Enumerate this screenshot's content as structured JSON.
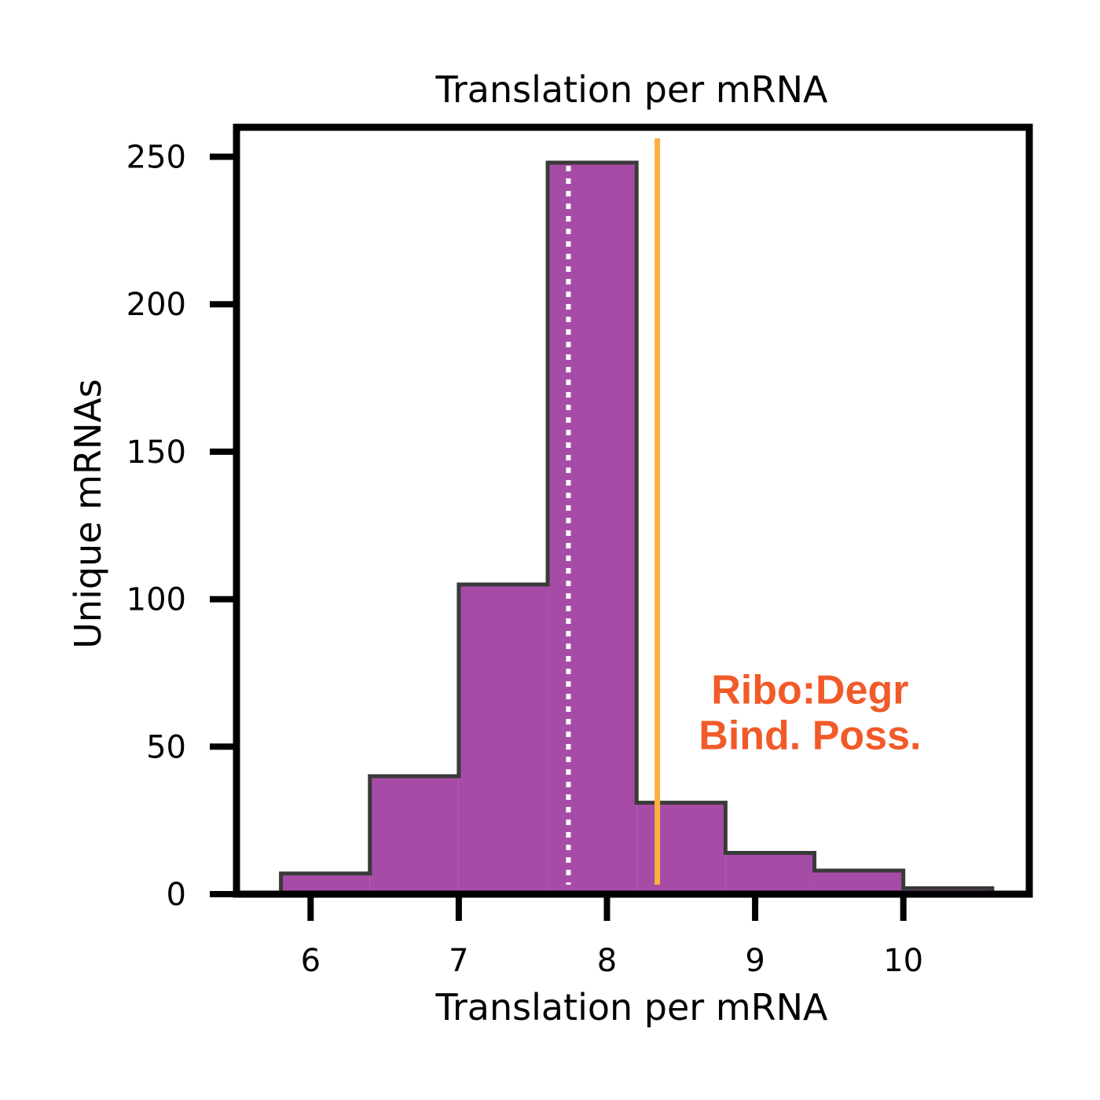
{
  "chart_data": {
    "type": "bar",
    "title": "Translation per mRNA",
    "xlabel": "Translation per mRNA",
    "ylabel": "Unique mRNAs",
    "xlim": [
      5.5,
      10.85
    ],
    "ylim": [
      0,
      260
    ],
    "xticks": [
      6,
      7,
      8,
      9,
      10
    ],
    "yticks": [
      0,
      50,
      100,
      150,
      200,
      250
    ],
    "bins": [
      {
        "x0": 5.8,
        "x1": 6.4,
        "value": 7
      },
      {
        "x0": 6.4,
        "x1": 7.0,
        "value": 40
      },
      {
        "x0": 7.0,
        "x1": 7.6,
        "value": 105
      },
      {
        "x0": 7.6,
        "x1": 8.2,
        "value": 248
      },
      {
        "x0": 8.2,
        "x1": 8.8,
        "value": 31
      },
      {
        "x0": 8.8,
        "x1": 9.4,
        "value": 14
      },
      {
        "x0": 9.4,
        "x1": 10.0,
        "value": 8
      },
      {
        "x0": 10.0,
        "x1": 10.6,
        "value": 2
      }
    ],
    "reference_lines": [
      {
        "x": 7.74,
        "style": "dotted",
        "color": "#ffffff"
      },
      {
        "x": 8.34,
        "style": "solid",
        "color": "#fbb040"
      }
    ],
    "annotation": {
      "lines": [
        "Ribo:Degr",
        "Bind. Poss."
      ],
      "color": "#f15a29",
      "x": 9.37,
      "y": 62
    },
    "colors": {
      "fill": "#a64ca6",
      "edge": "#3a3a3a"
    },
    "grid": false
  }
}
